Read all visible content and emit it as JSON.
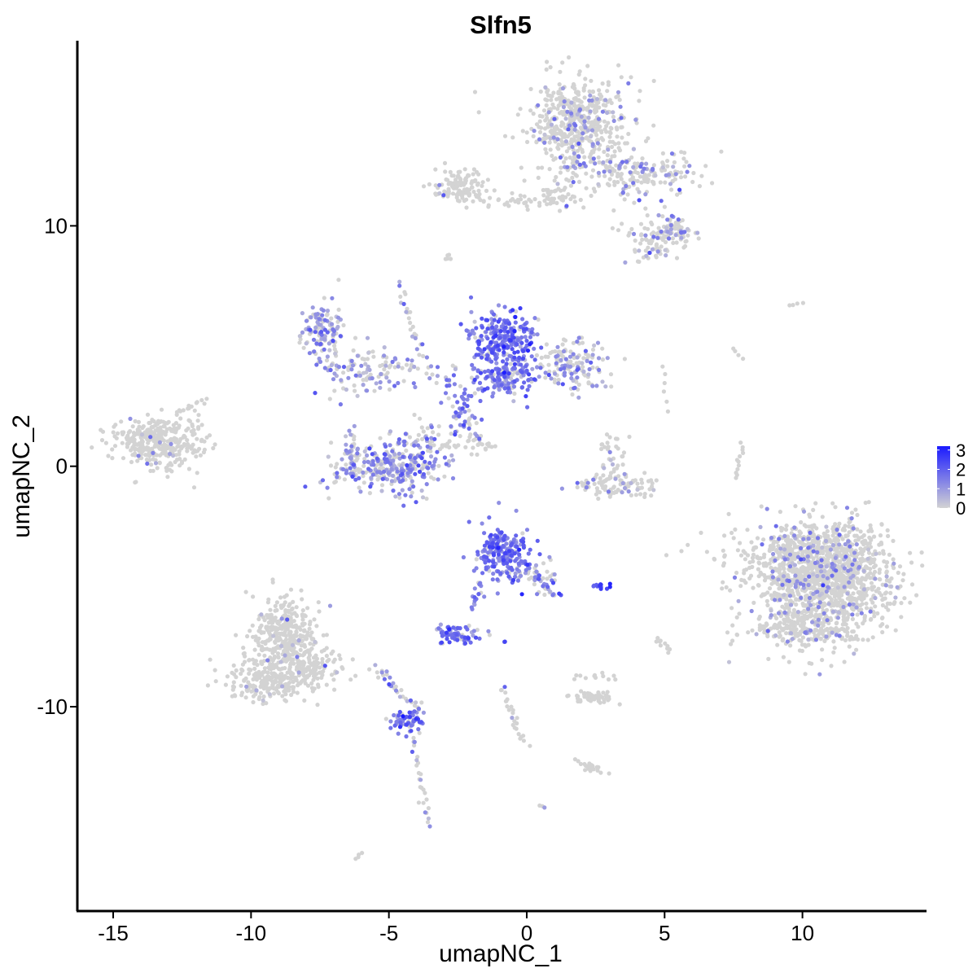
{
  "chart_data": {
    "type": "scatter",
    "title": "Slfn5",
    "xlabel": "umapNC_1",
    "ylabel": "umapNC_2",
    "xlim": [
      -16.3,
      14.5
    ],
    "ylim": [
      -18.5,
      17.7
    ],
    "x_ticks": [
      -15,
      -10,
      -5,
      0,
      5,
      10
    ],
    "x_tick_labels": [
      "-15",
      "-10",
      "-5",
      "0",
      "5",
      "10"
    ],
    "y_ticks": [
      -10,
      0,
      10
    ],
    "y_tick_labels": [
      "-10",
      "0",
      "10"
    ],
    "grid": false,
    "legend_position": "right",
    "color_scale": {
      "low_color": "#d3d3d3",
      "high_color": "#1a1aff",
      "min": 0,
      "max": 3.2,
      "ticks": [
        0,
        1,
        2,
        3
      ],
      "tick_labels": [
        "0",
        "1",
        "2",
        "3"
      ]
    },
    "clusters": [
      {
        "cx": 1.9,
        "cy": 14.3,
        "sx": 0.9,
        "sy": 0.9,
        "n": 520,
        "expr_rate": 0.13,
        "expr_mean": 1.0
      },
      {
        "cx": 3.8,
        "cy": 12.1,
        "sx": 1.3,
        "sy": 0.5,
        "n": 180,
        "expr_rate": 0.25,
        "expr_mean": 1.1
      },
      {
        "cx": 5.2,
        "cy": 9.8,
        "sx": 0.5,
        "sy": 0.4,
        "n": 90,
        "expr_rate": 0.3,
        "expr_mean": 1.2
      },
      {
        "cx": -2.4,
        "cy": 11.7,
        "sx": 0.5,
        "sy": 0.4,
        "n": 110,
        "expr_rate": 0.02,
        "expr_mean": 0.8
      },
      {
        "cx": -0.5,
        "cy": 11.1,
        "sx": 1.1,
        "sy": 0.15,
        "n": 40,
        "expr_rate": 0.0,
        "expr_mean": 0.5
      },
      {
        "cx": 1.0,
        "cy": 11.2,
        "sx": 0.3,
        "sy": 0.25,
        "n": 30,
        "expr_rate": 0.0,
        "expr_mean": 0.5
      },
      {
        "cx": 4.5,
        "cy": 9.0,
        "sx": 0.4,
        "sy": 0.3,
        "n": 40,
        "expr_rate": 0.2,
        "expr_mean": 1.0
      },
      {
        "cx": -7.3,
        "cy": 5.4,
        "sx": 0.4,
        "sy": 0.6,
        "n": 120,
        "expr_rate": 0.6,
        "expr_mean": 1.1
      },
      {
        "cx": -5.7,
        "cy": 3.9,
        "sx": 0.9,
        "sy": 0.5,
        "n": 90,
        "expr_rate": 0.35,
        "expr_mean": 0.9
      },
      {
        "cx": -0.8,
        "cy": 5.3,
        "sx": 0.6,
        "sy": 0.6,
        "n": 230,
        "expr_rate": 0.9,
        "expr_mean": 1.7
      },
      {
        "cx": -0.8,
        "cy": 3.8,
        "sx": 0.7,
        "sy": 0.5,
        "n": 160,
        "expr_rate": 0.8,
        "expr_mean": 1.5
      },
      {
        "cx": 1.6,
        "cy": 4.2,
        "sx": 0.7,
        "sy": 0.5,
        "n": 150,
        "expr_rate": 0.35,
        "expr_mean": 1.0
      },
      {
        "cx": -2.4,
        "cy": 2.5,
        "sx": 0.35,
        "sy": 0.8,
        "n": 50,
        "expr_rate": 0.7,
        "expr_mean": 1.6
      },
      {
        "cx": -13.3,
        "cy": 1.0,
        "sx": 0.75,
        "sy": 0.55,
        "n": 360,
        "expr_rate": 0.03,
        "expr_mean": 0.9
      },
      {
        "cx": -4.8,
        "cy": -0.1,
        "sx": 1.0,
        "sy": 0.5,
        "n": 260,
        "expr_rate": 0.6,
        "expr_mean": 1.2
      },
      {
        "cx": -6.3,
        "cy": 0.4,
        "sx": 0.3,
        "sy": 0.6,
        "n": 60,
        "expr_rate": 0.6,
        "expr_mean": 1.1
      },
      {
        "cx": -3.9,
        "cy": 1.0,
        "sx": 0.5,
        "sy": 0.5,
        "n": 50,
        "expr_rate": 0.5,
        "expr_mean": 1.1
      },
      {
        "cx": 3.3,
        "cy": -0.8,
        "sx": 0.8,
        "sy": 0.25,
        "n": 100,
        "expr_rate": 0.15,
        "expr_mean": 1.0
      },
      {
        "cx": 3.1,
        "cy": 0.6,
        "sx": 0.25,
        "sy": 0.5,
        "n": 30,
        "expr_rate": 0.1,
        "expr_mean": 0.9
      },
      {
        "cx": 10.8,
        "cy": -4.8,
        "sx": 1.2,
        "sy": 1.2,
        "n": 1300,
        "expr_rate": 0.13,
        "expr_mean": 1.0
      },
      {
        "cx": 10.3,
        "cy": -3.6,
        "sx": 1.6,
        "sy": 0.7,
        "n": 250,
        "expr_rate": 0.1,
        "expr_mean": 1.0
      },
      {
        "cx": -0.8,
        "cy": -3.6,
        "sx": 0.5,
        "sy": 0.55,
        "n": 220,
        "expr_rate": 0.92,
        "expr_mean": 1.7
      },
      {
        "cx": 0.6,
        "cy": -4.7,
        "sx": 0.35,
        "sy": 0.35,
        "n": 40,
        "expr_rate": 0.6,
        "expr_mean": 1.4
      },
      {
        "cx": -2.5,
        "cy": -7.0,
        "sx": 0.35,
        "sy": 0.2,
        "n": 70,
        "expr_rate": 0.85,
        "expr_mean": 1.6
      },
      {
        "cx": 2.8,
        "cy": -5.0,
        "sx": 0.15,
        "sy": 0.08,
        "n": 12,
        "expr_rate": 1.0,
        "expr_mean": 2.6
      },
      {
        "cx": -8.7,
        "cy": -7.2,
        "sx": 0.6,
        "sy": 0.8,
        "n": 400,
        "expr_rate": 0.03,
        "expr_mean": 0.8
      },
      {
        "cx": -9.3,
        "cy": -8.9,
        "sx": 0.8,
        "sy": 0.45,
        "n": 200,
        "expr_rate": 0.02,
        "expr_mean": 0.8
      },
      {
        "cx": -7.7,
        "cy": -8.4,
        "sx": 0.6,
        "sy": 0.4,
        "n": 80,
        "expr_rate": 0.03,
        "expr_mean": 0.8
      },
      {
        "cx": -4.3,
        "cy": -10.6,
        "sx": 0.3,
        "sy": 0.25,
        "n": 60,
        "expr_rate": 0.8,
        "expr_mean": 1.8
      },
      {
        "cx": 2.4,
        "cy": -9.6,
        "sx": 0.4,
        "sy": 0.12,
        "n": 60,
        "expr_rate": 0.0,
        "expr_mean": 0.5
      },
      {
        "cx": 2.3,
        "cy": -12.5,
        "sx": 0.2,
        "sy": 0.1,
        "n": 15,
        "expr_rate": 0.0,
        "expr_mean": 0.5
      },
      {
        "cx": -7.5,
        "cy": 6.1,
        "sx": 0.15,
        "sy": 0.15,
        "n": 20,
        "expr_rate": 0.6,
        "expr_mean": 1.2
      },
      {
        "cx": 10.0,
        "cy": -6.8,
        "sx": 1.1,
        "sy": 0.3,
        "n": 160,
        "expr_rate": 0.08,
        "expr_mean": 1.0
      }
    ],
    "trails": [
      {
        "x0": -5.5,
        "y0": -8.4,
        "x1": -3.8,
        "y1": -10.2,
        "n": 35,
        "jitter": 0.25,
        "expr_rate": 0.4,
        "expr_mean": 1.0
      },
      {
        "x0": -4.1,
        "y0": -11.0,
        "x1": -3.6,
        "y1": -15.0,
        "n": 28,
        "jitter": 0.15,
        "expr_rate": 0.3,
        "expr_mean": 0.9
      },
      {
        "x0": -1.7,
        "y0": -4.8,
        "x1": -2.0,
        "y1": -5.9,
        "n": 15,
        "jitter": 0.15,
        "expr_rate": 0.8,
        "expr_mean": 1.4
      },
      {
        "x0": 0.0,
        "y0": -4.3,
        "x1": 1.1,
        "y1": -5.4,
        "n": 18,
        "jitter": 0.15,
        "expr_rate": 0.7,
        "expr_mean": 1.4
      },
      {
        "x0": -0.9,
        "y0": -9.2,
        "x1": -0.1,
        "y1": -11.6,
        "n": 25,
        "jitter": 0.15,
        "expr_rate": 0.05,
        "expr_mean": 0.8
      },
      {
        "x0": -2.6,
        "y0": 2.0,
        "x1": -1.6,
        "y1": 0.9,
        "n": 10,
        "jitter": 0.2,
        "expr_rate": 0.3,
        "expr_mean": 1.0
      },
      {
        "x0": -2.6,
        "y0": 1.5,
        "x1": -1.5,
        "y1": 0.8,
        "n": 8,
        "jitter": 0.15,
        "expr_rate": 0.0,
        "expr_mean": 0.5
      },
      {
        "x0": -1.5,
        "y0": 0.9,
        "x1": -1.3,
        "y1": 0.8,
        "n": 4,
        "jitter": 0.1,
        "expr_rate": 0.0,
        "expr_mean": 0.5
      },
      {
        "x0": -4.6,
        "y0": 7.5,
        "x1": -3.8,
        "y1": 4.5,
        "n": 25,
        "jitter": 0.2,
        "expr_rate": 0.3,
        "expr_mean": 1.0
      },
      {
        "x0": -5.5,
        "y0": 4.6,
        "x1": -2.6,
        "y1": 3.6,
        "n": 25,
        "jitter": 0.3,
        "expr_rate": 0.5,
        "expr_mean": 1.1
      },
      {
        "x0": -2.3,
        "y0": 2.6,
        "x1": -1.7,
        "y1": 1.2,
        "n": 10,
        "jitter": 0.2,
        "expr_rate": 0.6,
        "expr_mean": 1.2
      },
      {
        "x0": -12.5,
        "y0": 2.3,
        "x1": -11.6,
        "y1": 2.8,
        "n": 10,
        "jitter": 0.15,
        "expr_rate": 0.0,
        "expr_mean": 0.5
      },
      {
        "x0": -3.2,
        "y0": 0.9,
        "x1": -1.3,
        "y1": 0.8,
        "n": 12,
        "jitter": 0.2,
        "expr_rate": 0.0,
        "expr_mean": 0.5
      },
      {
        "x0": 7.8,
        "y0": 0.9,
        "x1": 7.6,
        "y1": -0.5,
        "n": 12,
        "jitter": 0.08,
        "expr_rate": 0.0,
        "expr_mean": 0.5
      },
      {
        "x0": -2.9,
        "y0": 8.8,
        "x1": -2.9,
        "y1": 8.5,
        "n": 5,
        "jitter": 0.1,
        "expr_rate": 0.0,
        "expr_mean": 0.5
      },
      {
        "x0": 3.0,
        "y0": 12.7,
        "x1": 5.9,
        "y1": 12.0,
        "n": 25,
        "jitter": 0.3,
        "expr_rate": 0.25,
        "expr_mean": 1.1
      },
      {
        "x0": 3.2,
        "y0": 9.9,
        "x1": 5.8,
        "y1": 9.3,
        "n": 20,
        "jitter": 0.25,
        "expr_rate": 0.2,
        "expr_mean": 1.0
      },
      {
        "x0": 1.7,
        "y0": 12.8,
        "x1": 1.5,
        "y1": 11.6,
        "n": 10,
        "jitter": 0.2,
        "expr_rate": 0.0,
        "expr_mean": 0.5
      },
      {
        "x0": 4.7,
        "y0": -7.2,
        "x1": 5.2,
        "y1": -7.7,
        "n": 10,
        "jitter": 0.1,
        "expr_rate": 0.0,
        "expr_mean": 0.5
      },
      {
        "x0": 1.8,
        "y0": -8.8,
        "x1": 3.2,
        "y1": -8.8,
        "n": 12,
        "jitter": 0.2,
        "expr_rate": 0.0,
        "expr_mean": 0.5
      },
      {
        "x0": 1.8,
        "y0": -12.2,
        "x1": 2.8,
        "y1": -12.8,
        "n": 8,
        "jitter": 0.15,
        "expr_rate": 0.0,
        "expr_mean": 0.5
      },
      {
        "x0": 7.5,
        "y0": 4.9,
        "x1": 7.8,
        "y1": 4.5,
        "n": 4,
        "jitter": 0.05,
        "expr_rate": 0.0,
        "expr_mean": 0.5
      },
      {
        "x0": 9.5,
        "y0": 6.7,
        "x1": 10.0,
        "y1": 6.8,
        "n": 4,
        "jitter": 0.05,
        "expr_rate": 0.0,
        "expr_mean": 0.5
      },
      {
        "x0": 0.5,
        "y0": -14.1,
        "x1": 0.6,
        "y1": -14.2,
        "n": 3,
        "jitter": 0.05,
        "expr_rate": 0.7,
        "expr_mean": 1.2
      },
      {
        "x0": -6.2,
        "y0": -16.3,
        "x1": -6.0,
        "y1": -16.1,
        "n": 4,
        "jitter": 0.05,
        "expr_rate": 0.0,
        "expr_mean": 0.5
      },
      {
        "x0": -0.8,
        "y0": -7.3,
        "x1": -0.8,
        "y1": -7.3,
        "n": 3,
        "jitter": 0.05,
        "expr_rate": 0.8,
        "expr_mean": 1.5
      },
      {
        "x0": -3.4,
        "y0": 11.4,
        "x1": -3.0,
        "y1": 11.3,
        "n": 4,
        "jitter": 0.1,
        "expr_rate": 0.7,
        "expr_mean": 1.3
      },
      {
        "x0": 4.9,
        "y0": 4.2,
        "x1": 5.1,
        "y1": 2.3,
        "n": 6,
        "jitter": 0.1,
        "expr_rate": 0.0,
        "expr_mean": 0.5
      }
    ]
  }
}
